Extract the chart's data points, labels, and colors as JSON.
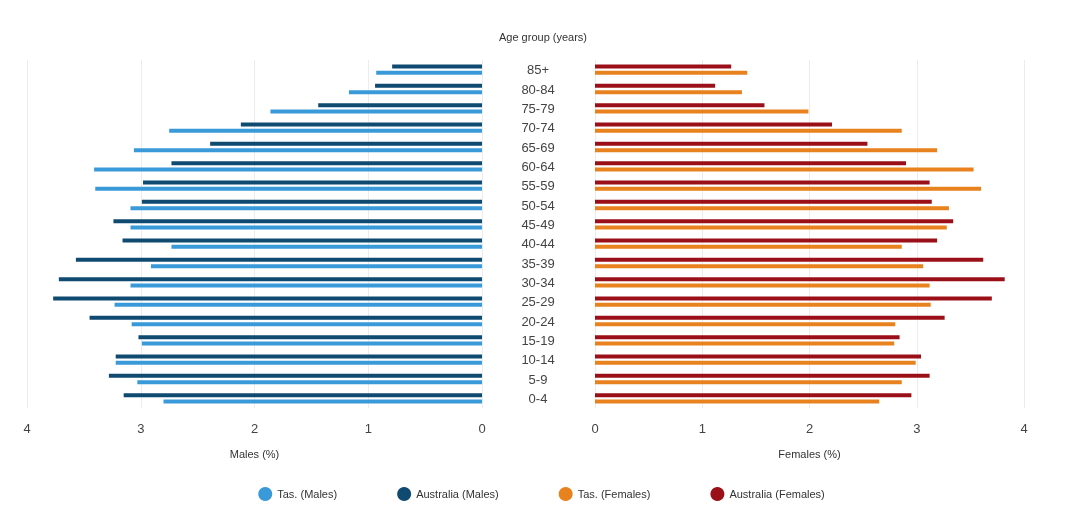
{
  "chart_data": [
    {
      "type": "bar",
      "orientation": "horizontal",
      "ylabel": "Age group (years)",
      "xlabel": "Males (%)",
      "categories": [
        "85+",
        "80-84",
        "75-79",
        "70-74",
        "65-69",
        "60-64",
        "55-59",
        "50-54",
        "45-49",
        "40-44",
        "35-39",
        "30-34",
        "25-29",
        "20-24",
        "15-19",
        "10-14",
        "5-9",
        "0-4"
      ],
      "series": [
        {
          "name": "Tas. (Males)",
          "color": "#3a9ad9",
          "values": [
            0.93,
            1.17,
            1.86,
            2.75,
            3.06,
            3.41,
            3.4,
            3.09,
            3.09,
            2.73,
            2.91,
            3.09,
            3.23,
            3.08,
            2.99,
            3.22,
            3.03,
            2.8
          ]
        },
        {
          "name": "Australia (Males)",
          "color": "#0f4a70",
          "values": [
            0.79,
            0.94,
            1.44,
            2.12,
            2.39,
            2.73,
            2.98,
            2.99,
            3.24,
            3.16,
            3.57,
            3.72,
            3.77,
            3.45,
            3.02,
            3.22,
            3.28,
            3.15
          ]
        }
      ],
      "xlim": [
        4,
        0
      ],
      "xticks": [
        4,
        3,
        2,
        1,
        0
      ],
      "grid": "x",
      "legend": "bottom"
    },
    {
      "type": "bar",
      "orientation": "horizontal",
      "xlabel": "Females (%)",
      "categories": [
        null,
        null,
        null,
        null,
        null,
        null,
        null,
        null,
        null,
        null,
        null,
        null,
        null,
        null,
        null,
        null,
        null,
        null
      ],
      "series": [
        {
          "name": "Tas. (Females)",
          "color": "#e8821e",
          "values": [
            1.42,
            1.37,
            1.99,
            2.86,
            3.19,
            3.53,
            3.6,
            3.3,
            3.28,
            2.86,
            3.06,
            3.12,
            3.13,
            2.8,
            2.79,
            2.99,
            2.86,
            2.65
          ]
        },
        {
          "name": "Australia (Females)",
          "color": "#9b1018",
          "values": [
            1.27,
            1.12,
            1.58,
            2.21,
            2.54,
            2.9,
            3.12,
            3.14,
            3.34,
            3.19,
            3.62,
            3.82,
            3.7,
            3.26,
            2.84,
            3.04,
            3.12,
            2.95
          ]
        }
      ],
      "xlim": [
        0,
        4
      ],
      "xticks": [
        0,
        1,
        2,
        3,
        4
      ],
      "grid": "x",
      "legend": "bottom"
    }
  ]
}
